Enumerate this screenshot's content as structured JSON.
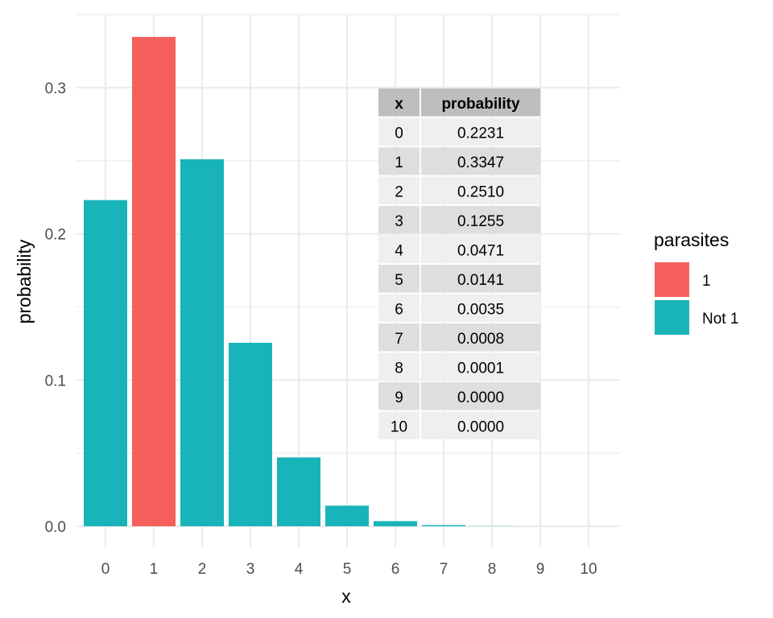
{
  "chart_data": {
    "type": "bar",
    "x": [
      0,
      1,
      2,
      3,
      4,
      5,
      6,
      7,
      8,
      9,
      10
    ],
    "values": [
      0.2231,
      0.3347,
      0.251,
      0.1255,
      0.0471,
      0.0141,
      0.0035,
      0.0008,
      0.0001,
      0.0,
      0.0
    ],
    "groups": [
      "Not 1",
      "1",
      "Not 1",
      "Not 1",
      "Not 1",
      "Not 1",
      "Not 1",
      "Not 1",
      "Not 1",
      "Not 1",
      "Not 1"
    ],
    "xlabel": "x",
    "ylabel": "probability",
    "ylim": [
      0,
      0.35
    ],
    "yticks": [
      0.0,
      0.1,
      0.2,
      0.3
    ],
    "ytick_labels": [
      "0.0",
      "0.1",
      "0.2",
      "0.3"
    ],
    "xtick_labels": [
      "0",
      "1",
      "2",
      "3",
      "4",
      "5",
      "6",
      "7",
      "8",
      "9",
      "10"
    ],
    "grid": true,
    "legend": {
      "title": "parasites",
      "placement": "right",
      "entries": [
        {
          "label": "1",
          "color": "#F8766D"
        },
        {
          "label": "Not 1",
          "color": "#00BFC4"
        }
      ]
    },
    "table": {
      "columns": [
        "x",
        "probability"
      ],
      "rows": [
        [
          "0",
          "0.2231"
        ],
        [
          "1",
          "0.3347"
        ],
        [
          "2",
          "0.2510"
        ],
        [
          "3",
          "0.1255"
        ],
        [
          "4",
          "0.0471"
        ],
        [
          "5",
          "0.0141"
        ],
        [
          "6",
          "0.0035"
        ],
        [
          "7",
          "0.0008"
        ],
        [
          "8",
          "0.0001"
        ],
        [
          "9",
          "0.0000"
        ],
        [
          "10",
          "0.0000"
        ]
      ]
    }
  },
  "colors": {
    "group_1": "#F5605C",
    "group_not_1": "#19B4B9",
    "grid": "#ebebeb",
    "table_header": "#bebebe",
    "table_row_light": "#efefef",
    "table_row_dark": "#dedede"
  }
}
